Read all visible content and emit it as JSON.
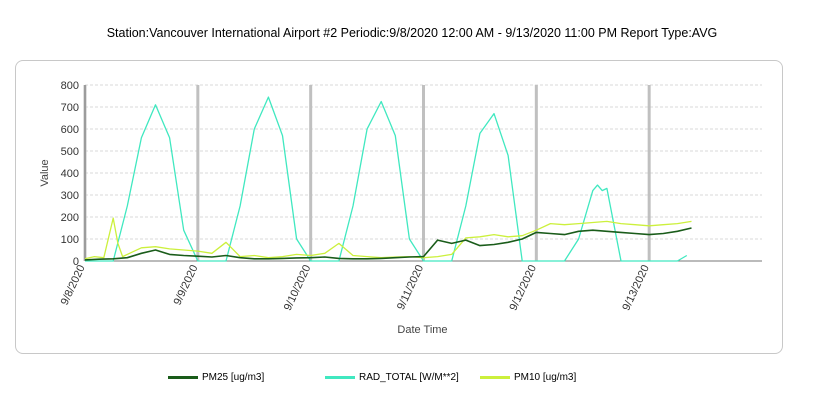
{
  "title": "Station:Vancouver International Airport #2 Periodic:9/8/2020 12:00 AM - 9/13/2020 11:00 PM Report Type:AVG",
  "chart_data": {
    "type": "line",
    "xlabel": "Date Time",
    "ylabel": "Value",
    "xlim": [
      "9/8/2020 0:00",
      "9/14/2020 0:00"
    ],
    "ylim": [
      0,
      800
    ],
    "y_ticks": [
      0,
      100,
      200,
      300,
      400,
      500,
      600,
      700,
      800
    ],
    "x_ticks": [
      "9/8/2020",
      "9/9/2020",
      "9/10/2020",
      "9/11/2020",
      "9/12/2020",
      "9/13/2020"
    ],
    "grid": true,
    "legend_position": "bottom",
    "series": [
      {
        "name": "PM25 [ug/m3]",
        "color": "#1a5c1a",
        "x": [
          "9/8 0:00",
          "9/8 3:00",
          "9/8 6:00",
          "9/8 9:00",
          "9/8 12:00",
          "9/8 15:00",
          "9/8 18:00",
          "9/8 21:00",
          "9/9 0:00",
          "9/9 3:00",
          "9/9 6:00",
          "9/9 9:00",
          "9/9 12:00",
          "9/9 15:00",
          "9/9 18:00",
          "9/9 21:00",
          "9/10 0:00",
          "9/10 3:00",
          "9/10 6:00",
          "9/10 9:00",
          "9/10 12:00",
          "9/10 15:00",
          "9/10 18:00",
          "9/10 21:00",
          "9/11 0:00",
          "9/11 3:00",
          "9/11 6:00",
          "9/11 9:00",
          "9/11 12:00",
          "9/11 15:00",
          "9/11 18:00",
          "9/11 21:00",
          "9/12 0:00",
          "9/12 3:00",
          "9/12 6:00",
          "9/12 9:00",
          "9/12 12:00",
          "9/12 15:00",
          "9/12 18:00",
          "9/12 21:00",
          "9/13 0:00",
          "9/13 3:00",
          "9/13 6:00",
          "9/13 9:00"
        ],
        "values": [
          5,
          8,
          10,
          15,
          35,
          50,
          30,
          25,
          22,
          18,
          25,
          15,
          10,
          10,
          12,
          14,
          15,
          18,
          12,
          10,
          10,
          12,
          15,
          18,
          20,
          95,
          80,
          95,
          70,
          75,
          85,
          100,
          130,
          125,
          120,
          135,
          140,
          135,
          130,
          125,
          120,
          125,
          135,
          150
        ]
      },
      {
        "name": "RAD_TOTAL [W/M**2]",
        "color": "#40e8c0",
        "x": [
          "9/8 0:00",
          "9/8 6:00",
          "9/8 9:00",
          "9/8 12:00",
          "9/8 15:00",
          "9/8 18:00",
          "9/8 21:00",
          "9/9 0:00",
          "9/9 6:00",
          "9/9 9:00",
          "9/9 12:00",
          "9/9 15:00",
          "9/9 18:00",
          "9/9 21:00",
          "9/10 0:00",
          "9/10 6:00",
          "9/10 9:00",
          "9/10 12:00",
          "9/10 15:00",
          "9/10 18:00",
          "9/10 21:00",
          "9/11 0:00",
          "9/11 6:00",
          "9/11 9:00",
          "9/11 12:00",
          "9/11 15:00",
          "9/11 18:00",
          "9/11 21:00",
          "9/12 0:00",
          "9/12 6:00",
          "9/12 9:00",
          "9/12 12:00",
          "9/12 13:00",
          "9/12 14:00",
          "9/12 15:00",
          "9/12 18:00",
          "9/12 21:00",
          "9/13 0:00",
          "9/13 6:00",
          "9/13 8:00"
        ],
        "values": [
          0,
          0,
          250,
          560,
          710,
          560,
          140,
          0,
          0,
          250,
          600,
          745,
          570,
          100,
          0,
          0,
          250,
          600,
          725,
          570,
          100,
          0,
          0,
          250,
          580,
          670,
          480,
          0,
          0,
          0,
          100,
          320,
          345,
          320,
          330,
          0,
          0,
          0,
          0,
          25
        ]
      },
      {
        "name": "PM10 [ug/m3]",
        "color": "#ccf03c",
        "x": [
          "9/8 0:00",
          "9/8 2:00",
          "9/8 4:00",
          "9/8 6:00",
          "9/8 7:00",
          "9/8 8:00",
          "9/8 10:00",
          "9/8 12:00",
          "9/8 15:00",
          "9/8 18:00",
          "9/8 21:00",
          "9/9 0:00",
          "9/9 3:00",
          "9/9 6:00",
          "9/9 9:00",
          "9/9 12:00",
          "9/9 15:00",
          "9/9 18:00",
          "9/9 21:00",
          "9/10 0:00",
          "9/10 3:00",
          "9/10 6:00",
          "9/10 9:00",
          "9/10 12:00",
          "9/10 15:00",
          "9/10 18:00",
          "9/10 21:00",
          "9/11 0:00",
          "9/11 3:00",
          "9/11 6:00",
          "9/11 9:00",
          "9/11 12:00",
          "9/11 15:00",
          "9/11 18:00",
          "9/11 21:00",
          "9/12 0:00",
          "9/12 3:00",
          "9/12 6:00",
          "9/12 9:00",
          "9/12 12:00",
          "9/12 15:00",
          "9/12 18:00",
          "9/12 21:00",
          "9/13 0:00",
          "9/13 3:00",
          "9/13 6:00",
          "9/13 9:00"
        ],
        "values": [
          10,
          20,
          15,
          195,
          80,
          20,
          40,
          60,
          65,
          55,
          50,
          45,
          35,
          85,
          20,
          25,
          15,
          20,
          30,
          25,
          35,
          80,
          25,
          20,
          15,
          18,
          20,
          15,
          20,
          30,
          105,
          110,
          120,
          110,
          115,
          140,
          170,
          165,
          170,
          175,
          180,
          170,
          165,
          160,
          165,
          170,
          180
        ]
      }
    ]
  }
}
